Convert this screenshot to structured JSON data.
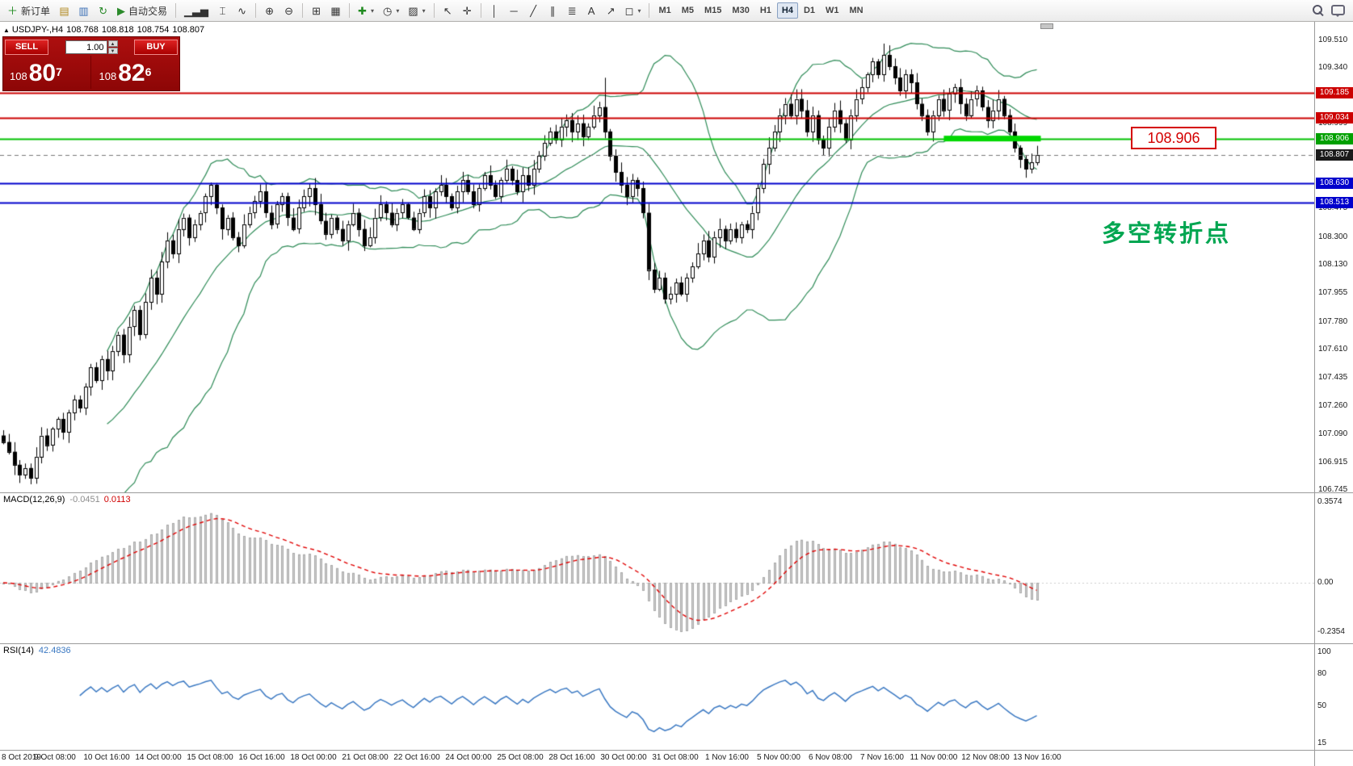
{
  "toolbar": {
    "items": [
      {
        "name": "new-order-button",
        "icon": "＋",
        "icon_color": "#1f8a1f",
        "label": "新订单"
      },
      {
        "name": "charts-window-button",
        "icon": "▤",
        "icon_color": "#b08820"
      },
      {
        "name": "profiles-button",
        "icon": "▥",
        "icon_color": "#3b6fb5"
      },
      {
        "name": "refresh-button",
        "icon": "↻",
        "icon_color": "#2a8a2a"
      },
      {
        "name": "auto-trading-button",
        "icon": "▶",
        "icon_color": "#2a8a2a",
        "label": "自动交易"
      },
      {
        "sep": true
      },
      {
        "name": "bar-chart-type-button",
        "icon": "▁▃▅"
      },
      {
        "name": "candlestick-type-button",
        "icon": "⌶"
      },
      {
        "name": "line-chart-type-button",
        "icon": "∿"
      },
      {
        "sep": true
      },
      {
        "name": "zoom-in-button",
        "icon": "⊕"
      },
      {
        "name": "zoom-out-button",
        "icon": "⊖"
      },
      {
        "sep": true
      },
      {
        "name": "tile-windows-button",
        "icon": "⊞"
      },
      {
        "name": "arrange-windows-button",
        "icon": "▦"
      },
      {
        "sep": true
      },
      {
        "name": "indicators-dropdown",
        "icon": "✚",
        "icon_color": "#1f8a1f",
        "caret": true
      },
      {
        "name": "periods-dropdown",
        "icon": "◷",
        "caret": true
      },
      {
        "name": "templates-dropdown",
        "icon": "▨",
        "caret": true
      },
      {
        "sep": true
      },
      {
        "name": "cursor-tool-button",
        "icon": "↖"
      },
      {
        "name": "crosshair-tool-button",
        "icon": "✛"
      },
      {
        "sep": true
      },
      {
        "name": "vertical-line-tool-button",
        "icon": "│"
      },
      {
        "name": "horizontal-line-tool-button",
        "icon": "─"
      },
      {
        "name": "trendline-tool-button",
        "icon": "╱"
      },
      {
        "name": "channel-tool-button",
        "icon": "∥"
      },
      {
        "name": "fibonacci-tool-button",
        "icon": "≣"
      },
      {
        "name": "text-label-tool-button",
        "icon": "A"
      },
      {
        "name": "arrow-tool-button",
        "icon": "↗"
      },
      {
        "name": "shapes-dropdown",
        "icon": "◻",
        "caret": true
      },
      {
        "sep": true
      }
    ],
    "timeframes": {
      "options": [
        "M1",
        "M5",
        "M15",
        "M30",
        "H1",
        "H4",
        "D1",
        "W1",
        "MN"
      ],
      "active": "H4"
    },
    "right_icons": [
      {
        "name": "search-button",
        "type": "search"
      },
      {
        "name": "chat-button",
        "type": "chat"
      }
    ]
  },
  "chart": {
    "title": {
      "collapse_icon": "▲",
      "symbol": "USDJPY-,H4",
      "open": "108.768",
      "high": "108.818",
      "low": "108.754",
      "close": "108.807"
    },
    "trade_panel": {
      "sell_label": "SELL",
      "buy_label": "BUY",
      "volume": "1.00",
      "sell_price": {
        "small": "108",
        "big": "80",
        "sup": "7"
      },
      "buy_price": {
        "small": "108",
        "big": "82",
        "sup": "6"
      }
    },
    "annotation": {
      "text": "多空转折点",
      "color": "#00a651"
    },
    "price_label_box": {
      "text": "108.906"
    },
    "levels": [
      {
        "price": 109.185,
        "color": "#cc0000",
        "type": "solid",
        "badge": "109.185"
      },
      {
        "price": 109.034,
        "color": "#cc0000",
        "type": "solid",
        "badge": "109.034"
      },
      {
        "price": 108.906,
        "color": "#00c000",
        "type": "solid",
        "badge": "108.906",
        "badge_color": "#00a000"
      },
      {
        "price": 108.807,
        "color": "#777777",
        "type": "dash",
        "badge": "108.807",
        "badge_color": "#1a1a1a"
      },
      {
        "price": 108.63,
        "color": "#0000cc",
        "type": "solid",
        "badge": "108.630"
      },
      {
        "price": 108.513,
        "color": "#0000cc",
        "type": "solid",
        "badge": "108.513"
      }
    ],
    "highlight_segment": {
      "price": 108.906,
      "i_start": 172,
      "i_end": 189,
      "color": "#00d800",
      "thickness": 7
    },
    "price_axis_ticks": [
      "109.510",
      "109.340",
      "108.999",
      "108.475",
      "108.300",
      "108.130",
      "107.955",
      "107.780",
      "107.610",
      "107.435",
      "107.260",
      "107.090",
      "106.915",
      "106.745"
    ],
    "time_axis": [
      "8 Oct 2019",
      "9 Oct 08:00",
      "10 Oct 16:00",
      "14 Oct 00:00",
      "15 Oct 08:00",
      "16 Oct 16:00",
      "18 Oct 00:00",
      "21 Oct 08:00",
      "22 Oct 16:00",
      "24 Oct 00:00",
      "25 Oct 08:00",
      "28 Oct 16:00",
      "30 Oct 00:00",
      "31 Oct 08:00",
      "1 Nov 16:00",
      "5 Nov 00:00",
      "6 Nov 08:00",
      "7 Nov 16:00",
      "11 Nov 00:00",
      "12 Nov 08:00",
      "13 Nov 16:00"
    ]
  },
  "macd": {
    "label": "MACD(12,26,9)",
    "value_main": "-0.0451",
    "value_signal": "0.0113",
    "axis": [
      "0.3574",
      "0.00",
      "-0.2354"
    ]
  },
  "rsi": {
    "label": "RSI(14)",
    "value": "42.4836",
    "axis": [
      "100",
      "80",
      "50",
      "15"
    ]
  },
  "chart_data": {
    "type": "candlestick",
    "symbol": "USDJPY",
    "timeframe": "H4",
    "ylim": [
      106.745,
      109.51
    ],
    "closes": [
      107.04,
      106.98,
      106.9,
      106.84,
      106.88,
      106.82,
      106.95,
      107.08,
      107.02,
      107.12,
      107.18,
      107.1,
      107.22,
      107.3,
      107.25,
      107.38,
      107.5,
      107.42,
      107.55,
      107.48,
      107.6,
      107.7,
      107.58,
      107.75,
      107.85,
      107.7,
      107.9,
      108.05,
      107.95,
      108.15,
      108.28,
      108.2,
      108.35,
      108.42,
      108.3,
      108.38,
      108.45,
      108.55,
      108.62,
      108.48,
      108.35,
      108.42,
      108.3,
      108.25,
      108.38,
      108.45,
      108.52,
      108.58,
      108.45,
      108.38,
      108.5,
      108.55,
      108.42,
      108.35,
      108.48,
      108.55,
      108.6,
      108.5,
      108.4,
      108.32,
      108.42,
      108.35,
      108.28,
      108.38,
      108.45,
      108.35,
      108.25,
      108.3,
      108.42,
      108.5,
      108.45,
      108.38,
      108.45,
      108.5,
      108.42,
      108.35,
      108.45,
      108.55,
      108.48,
      108.58,
      108.62,
      108.55,
      108.48,
      108.58,
      108.65,
      108.58,
      108.5,
      108.6,
      108.68,
      108.62,
      108.55,
      108.65,
      108.72,
      108.65,
      108.58,
      108.68,
      108.62,
      108.72,
      108.8,
      108.88,
      108.95,
      108.9,
      108.98,
      109.02,
      108.95,
      109.0,
      108.92,
      108.98,
      109.05,
      109.1,
      108.95,
      108.8,
      108.7,
      108.62,
      108.55,
      108.65,
      108.6,
      108.45,
      108.1,
      107.98,
      108.05,
      107.92,
      107.95,
      108.02,
      107.95,
      108.05,
      108.12,
      108.2,
      108.28,
      108.18,
      108.3,
      108.35,
      108.28,
      108.35,
      108.3,
      108.38,
      108.35,
      108.45,
      108.6,
      108.75,
      108.85,
      108.95,
      109.05,
      109.12,
      109.05,
      109.15,
      109.08,
      108.95,
      109.05,
      108.9,
      108.85,
      108.98,
      109.08,
      109.0,
      108.9,
      109.05,
      109.15,
      109.22,
      109.3,
      109.38,
      109.3,
      109.42,
      109.35,
      109.28,
      109.2,
      109.3,
      109.25,
      109.12,
      109.05,
      108.95,
      109.05,
      109.15,
      109.08,
      109.18,
      109.22,
      109.12,
      109.05,
      109.15,
      109.2,
      109.1,
      109.02,
      109.08,
      109.15,
      109.05,
      108.95,
      108.85,
      108.78,
      108.72,
      108.76,
      108.807
    ],
    "wick_overrides": {
      "5": {
        "low": 106.78
      },
      "110": {
        "high": 109.28
      },
      "121": {
        "low": 107.89
      },
      "161": {
        "high": 109.49
      }
    },
    "indicators": [
      {
        "name": "Bollinger Bands",
        "period": 20,
        "deviation": 2,
        "color": "#2e8b57"
      },
      {
        "name": "MACD",
        "fast": 12,
        "slow": 26,
        "signal": 9,
        "histogram_color": "#cfcfcf",
        "signal_color": "#e00000"
      },
      {
        "name": "RSI",
        "period": 14,
        "color": "#3a78c2"
      }
    ]
  }
}
